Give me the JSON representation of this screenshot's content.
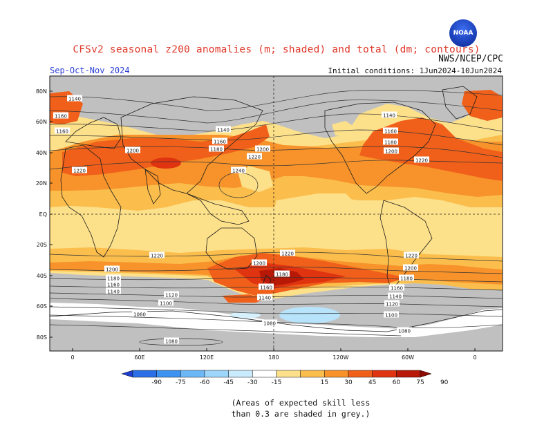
{
  "title": "CFSv2 seasonal z200 anomalies (m; shaded) and total (dm; contours)",
  "org": "NWS/NCEP/CPC",
  "logo_text": "NOAA",
  "season": "Sep-Oct-Nov 2024",
  "initial_conditions": "Initial conditions: 1Jun2024-10Jun2024",
  "lat_labels": [
    "80N",
    "60N",
    "40N",
    "20N",
    "EQ",
    "20S",
    "40S",
    "60S",
    "80S"
  ],
  "lon_labels": [
    "0",
    "60E",
    "120E",
    "180",
    "120W",
    "60W",
    "0"
  ],
  "colorbar": {
    "ticks": [
      "-90",
      "-75",
      "-60",
      "-45",
      "-30",
      "-15",
      "15",
      "30",
      "45",
      "60",
      "75",
      "90"
    ],
    "colors": [
      "#1e3fd0",
      "#2b6fe6",
      "#3d93f2",
      "#6cb8f7",
      "#9ed6fb",
      "#c9ebfd",
      "#ffffff",
      "#fde08a",
      "#fbbe4d",
      "#f7932a",
      "#f0601a",
      "#e03410",
      "#b81806",
      "#8e0a02"
    ]
  },
  "contour_labels": [
    {
      "text": "1140"
    },
    {
      "text": "1160"
    },
    {
      "text": "1160"
    },
    {
      "text": "1200"
    },
    {
      "text": "1220"
    },
    {
      "text": "1140"
    },
    {
      "text": "1160"
    },
    {
      "text": "1180"
    },
    {
      "text": "1200"
    },
    {
      "text": "1220"
    },
    {
      "text": "1240"
    },
    {
      "text": "1140"
    },
    {
      "text": "1160"
    },
    {
      "text": "1180"
    },
    {
      "text": "1200"
    },
    {
      "text": "1220"
    },
    {
      "text": "1220"
    },
    {
      "text": "1220"
    },
    {
      "text": "1200"
    },
    {
      "text": "1180"
    },
    {
      "text": "1160"
    },
    {
      "text": "1140"
    },
    {
      "text": "1120"
    },
    {
      "text": "1100"
    },
    {
      "text": "1200"
    },
    {
      "text": "1180"
    },
    {
      "text": "1160"
    },
    {
      "text": "1140"
    },
    {
      "text": "1220"
    },
    {
      "text": "1200"
    },
    {
      "text": "1180"
    },
    {
      "text": "1160"
    },
    {
      "text": "1140"
    },
    {
      "text": "1120"
    },
    {
      "text": "1100"
    },
    {
      "text": "1080"
    },
    {
      "text": "1080"
    },
    {
      "text": "1060"
    },
    {
      "text": "1080"
    }
  ],
  "note_line1": "(Areas of expected skill less",
  "note_line2": "than 0.3 are shaded in grey.)"
}
